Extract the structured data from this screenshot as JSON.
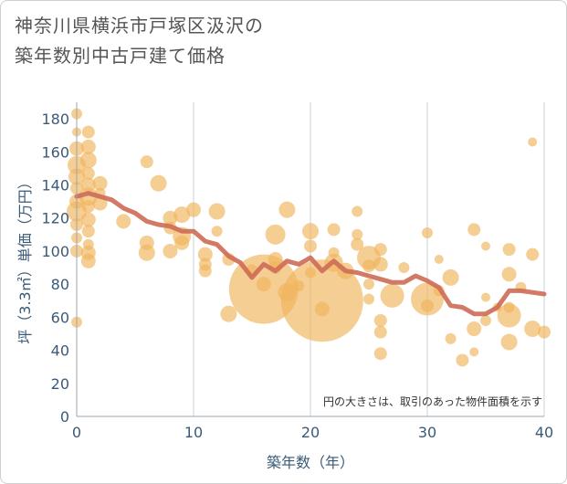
{
  "title_lines": [
    "神奈川県横浜市戸塚区汲沢の",
    "築年数別中古戸建て価格"
  ],
  "note": "円の大きさは、取引のあった物件面積を示す",
  "chart_data": {
    "type": "scatter",
    "xlabel": "築年数（年）",
    "ylabel": "坪（3.3㎡）単価（万円）",
    "xlim": [
      0,
      40
    ],
    "ylim": [
      0,
      190
    ],
    "xticks": [
      0,
      10,
      20,
      30,
      40
    ],
    "yticks": [
      0,
      20,
      40,
      60,
      80,
      100,
      120,
      140,
      160,
      180
    ],
    "grid": "vertical",
    "colors": {
      "bubble": "#f0b45a",
      "line": "#cd6b55",
      "axis_text": "#3a5a78",
      "grid": "#c9d3dc"
    },
    "bubbles": [
      {
        "x": 0,
        "y": 183,
        "s": 6
      },
      {
        "x": 0,
        "y": 172,
        "s": 5
      },
      {
        "x": 0,
        "y": 162,
        "s": 8
      },
      {
        "x": 0,
        "y": 152,
        "s": 10
      },
      {
        "x": 0,
        "y": 145,
        "s": 9
      },
      {
        "x": 0,
        "y": 138,
        "s": 7
      },
      {
        "x": 0,
        "y": 130,
        "s": 8
      },
      {
        "x": 0,
        "y": 124,
        "s": 11
      },
      {
        "x": 0,
        "y": 116,
        "s": 7
      },
      {
        "x": 0,
        "y": 108,
        "s": 6
      },
      {
        "x": 0,
        "y": 100,
        "s": 7
      },
      {
        "x": 0,
        "y": 57,
        "s": 6
      },
      {
        "x": 1,
        "y": 172,
        "s": 7
      },
      {
        "x": 1,
        "y": 163,
        "s": 8
      },
      {
        "x": 1,
        "y": 155,
        "s": 9
      },
      {
        "x": 1,
        "y": 147,
        "s": 7
      },
      {
        "x": 1,
        "y": 140,
        "s": 8
      },
      {
        "x": 1,
        "y": 133,
        "s": 10
      },
      {
        "x": 1,
        "y": 127,
        "s": 7
      },
      {
        "x": 1,
        "y": 119,
        "s": 8
      },
      {
        "x": 1,
        "y": 112,
        "s": 7
      },
      {
        "x": 1,
        "y": 104,
        "s": 6
      },
      {
        "x": 1,
        "y": 99,
        "s": 8
      },
      {
        "x": 1,
        "y": 94,
        "s": 8
      },
      {
        "x": 2,
        "y": 141,
        "s": 8
      },
      {
        "x": 2,
        "y": 129,
        "s": 8
      },
      {
        "x": 2,
        "y": 135,
        "s": 6
      },
      {
        "x": 4,
        "y": 118,
        "s": 8
      },
      {
        "x": 6,
        "y": 154,
        "s": 7
      },
      {
        "x": 6,
        "y": 105,
        "s": 8
      },
      {
        "x": 6,
        "y": 99,
        "s": 9
      },
      {
        "x": 7,
        "y": 141,
        "s": 9
      },
      {
        "x": 8,
        "y": 120,
        "s": 8
      },
      {
        "x": 8,
        "y": 114,
        "s": 7
      },
      {
        "x": 8,
        "y": 100,
        "s": 8
      },
      {
        "x": 9,
        "y": 122,
        "s": 9
      },
      {
        "x": 9,
        "y": 109,
        "s": 10
      },
      {
        "x": 9,
        "y": 105,
        "s": 8
      },
      {
        "x": 10,
        "y": 125,
        "s": 8
      },
      {
        "x": 11,
        "y": 98,
        "s": 8
      },
      {
        "x": 11,
        "y": 92,
        "s": 7
      },
      {
        "x": 11,
        "y": 88,
        "s": 7
      },
      {
        "x": 12,
        "y": 124,
        "s": 9
      },
      {
        "x": 12,
        "y": 112,
        "s": 6
      },
      {
        "x": 13,
        "y": 95,
        "s": 7
      },
      {
        "x": 13,
        "y": 62,
        "s": 9
      },
      {
        "x": 15,
        "y": 88,
        "s": 7
      },
      {
        "x": 16,
        "y": 80,
        "s": 8
      },
      {
        "x": 16,
        "y": 77,
        "s": 38
      },
      {
        "x": 17,
        "y": 110,
        "s": 11
      },
      {
        "x": 17,
        "y": 95,
        "s": 8
      },
      {
        "x": 17,
        "y": 90,
        "s": 7
      },
      {
        "x": 18,
        "y": 125,
        "s": 9
      },
      {
        "x": 18,
        "y": 75,
        "s": 10
      },
      {
        "x": 19,
        "y": 79,
        "s": 6
      },
      {
        "x": 20,
        "y": 112,
        "s": 9
      },
      {
        "x": 20,
        "y": 103,
        "s": 7
      },
      {
        "x": 20,
        "y": 87,
        "s": 6
      },
      {
        "x": 21,
        "y": 70,
        "s": 45
      },
      {
        "x": 21,
        "y": 65,
        "s": 8
      },
      {
        "x": 22,
        "y": 113,
        "s": 7
      },
      {
        "x": 22,
        "y": 99,
        "s": 6
      },
      {
        "x": 22,
        "y": 93,
        "s": 10
      },
      {
        "x": 23,
        "y": 88,
        "s": 9
      },
      {
        "x": 24,
        "y": 124,
        "s": 6
      },
      {
        "x": 24,
        "y": 110,
        "s": 6
      },
      {
        "x": 24,
        "y": 104,
        "s": 7
      },
      {
        "x": 25,
        "y": 96,
        "s": 13
      },
      {
        "x": 25,
        "y": 91,
        "s": 7
      },
      {
        "x": 25,
        "y": 80,
        "s": 6
      },
      {
        "x": 25,
        "y": 71,
        "s": 6
      },
      {
        "x": 26,
        "y": 101,
        "s": 7
      },
      {
        "x": 26,
        "y": 92,
        "s": 8
      },
      {
        "x": 26,
        "y": 58,
        "s": 7
      },
      {
        "x": 26,
        "y": 51,
        "s": 7
      },
      {
        "x": 26,
        "y": 38,
        "s": 7
      },
      {
        "x": 27,
        "y": 73,
        "s": 13
      },
      {
        "x": 28,
        "y": 90,
        "s": 6
      },
      {
        "x": 30,
        "y": 111,
        "s": 6
      },
      {
        "x": 30,
        "y": 71,
        "s": 18
      },
      {
        "x": 30,
        "y": 67,
        "s": 7
      },
      {
        "x": 31,
        "y": 95,
        "s": 5
      },
      {
        "x": 31,
        "y": 76,
        "s": 6
      },
      {
        "x": 32,
        "y": 84,
        "s": 9
      },
      {
        "x": 32,
        "y": 47,
        "s": 6
      },
      {
        "x": 33,
        "y": 34,
        "s": 7
      },
      {
        "x": 34,
        "y": 113,
        "s": 7
      },
      {
        "x": 34,
        "y": 53,
        "s": 8
      },
      {
        "x": 34,
        "y": 39,
        "s": 5
      },
      {
        "x": 35,
        "y": 103,
        "s": 5
      },
      {
        "x": 35,
        "y": 72,
        "s": 5
      },
      {
        "x": 35,
        "y": 58,
        "s": 6
      },
      {
        "x": 36,
        "y": 66,
        "s": 5
      },
      {
        "x": 37,
        "y": 101,
        "s": 7
      },
      {
        "x": 37,
        "y": 86,
        "s": 8
      },
      {
        "x": 37,
        "y": 66,
        "s": 6
      },
      {
        "x": 37,
        "y": 61,
        "s": 13
      },
      {
        "x": 37,
        "y": 45,
        "s": 9
      },
      {
        "x": 38,
        "y": 78,
        "s": 6
      },
      {
        "x": 39,
        "y": 166,
        "s": 5
      },
      {
        "x": 39,
        "y": 98,
        "s": 7
      },
      {
        "x": 39,
        "y": 53,
        "s": 9
      },
      {
        "x": 40,
        "y": 51,
        "s": 7
      }
    ],
    "series": [
      {
        "x": [
          0,
          1,
          2,
          3,
          4,
          5,
          6,
          7,
          8,
          9,
          10,
          11,
          12,
          13,
          14,
          15,
          16,
          17,
          18,
          19,
          20,
          21,
          22,
          23,
          24,
          25,
          26,
          27,
          28,
          29,
          30,
          31,
          32,
          33,
          34,
          35,
          36,
          37,
          38,
          39,
          40
        ],
        "y": [
          133,
          135,
          133,
          131,
          126,
          123,
          118,
          116,
          115,
          112,
          112,
          106,
          104,
          97,
          93,
          84,
          92,
          88,
          94,
          92,
          96,
          88,
          94,
          88,
          87,
          85,
          83,
          81,
          81,
          85,
          82,
          78,
          67,
          66,
          62,
          62,
          66,
          76,
          76,
          75,
          74
        ]
      }
    ]
  }
}
